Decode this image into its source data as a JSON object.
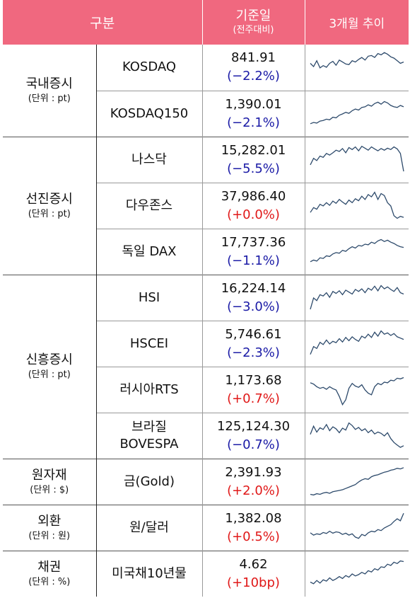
{
  "header": {
    "category": "구분",
    "base_value": "기준일",
    "base_sub": "(전주대비)",
    "trend": "3개월 추이"
  },
  "groups": {
    "domestic": {
      "name": "국내증시",
      "unit": "(단위 : pt)"
    },
    "developed": {
      "name": "선진증시",
      "unit": "(단위 : pt)"
    },
    "emerging": {
      "name": "신흥증시",
      "unit": "(단위 : pt)"
    },
    "commodity": {
      "name": "원자재",
      "unit": "(단위 : $)"
    },
    "fx": {
      "name": "외환",
      "unit": "(단위 : 원)"
    },
    "bond": {
      "name": "채권",
      "unit": "(단위 : %)"
    }
  },
  "rows": [
    {
      "name": "KOSDAQ",
      "value": "841.91",
      "change": "(−2.2%)",
      "dir": "neg",
      "trend": [
        0.62,
        0.52,
        0.7,
        0.48,
        0.55,
        0.5,
        0.62,
        0.68,
        0.56,
        0.72,
        0.66,
        0.6,
        0.58,
        0.7,
        0.66,
        0.74,
        0.8,
        0.72,
        0.84,
        0.86,
        0.8,
        0.92,
        0.88,
        0.95,
        0.9,
        0.82,
        0.78,
        0.7,
        0.62,
        0.66
      ]
    },
    {
      "name": "KOSDAQ150",
      "value": "1,390.01",
      "change": "(−2.1%)",
      "dir": "neg",
      "trend": [
        0.2,
        0.24,
        0.22,
        0.28,
        0.3,
        0.34,
        0.32,
        0.4,
        0.38,
        0.46,
        0.5,
        0.55,
        0.52,
        0.6,
        0.65,
        0.62,
        0.7,
        0.72,
        0.78,
        0.74,
        0.82,
        0.86,
        0.8,
        0.88,
        0.84,
        0.76,
        0.72,
        0.7,
        0.76,
        0.72
      ]
    },
    {
      "name": "나스닥",
      "value": "15,282.01",
      "change": "(−5.5%)",
      "dir": "neg",
      "trend": [
        0.35,
        0.55,
        0.48,
        0.62,
        0.58,
        0.7,
        0.65,
        0.72,
        0.8,
        0.76,
        0.85,
        0.72,
        0.88,
        0.82,
        0.9,
        0.78,
        0.92,
        0.86,
        0.8,
        0.9,
        0.84,
        0.78,
        0.85,
        0.8,
        0.86,
        0.82,
        0.9,
        0.84,
        0.7,
        0.15
      ]
    },
    {
      "name": "다우존스",
      "value": "37,986.40",
      "change": "(+0.0%)",
      "dir": "pos",
      "trend": [
        0.3,
        0.45,
        0.4,
        0.55,
        0.5,
        0.6,
        0.52,
        0.65,
        0.58,
        0.7,
        0.62,
        0.55,
        0.68,
        0.6,
        0.72,
        0.66,
        0.8,
        0.7,
        0.85,
        0.78,
        0.92,
        0.7,
        0.88,
        0.82,
        0.6,
        0.5,
        0.2,
        0.12,
        0.18,
        0.15
      ]
    },
    {
      "name": "독일 DAX",
      "value": "17,737.36",
      "change": "(−1.1%)",
      "dir": "neg",
      "trend": [
        0.2,
        0.25,
        0.22,
        0.32,
        0.3,
        0.38,
        0.36,
        0.44,
        0.48,
        0.46,
        0.55,
        0.52,
        0.6,
        0.66,
        0.62,
        0.7,
        0.68,
        0.74,
        0.72,
        0.8,
        0.76,
        0.84,
        0.88,
        0.82,
        0.86,
        0.8,
        0.76,
        0.7,
        0.66,
        0.64
      ]
    },
    {
      "name": "HSI",
      "value": "16,224.14",
      "change": "(−3.0%)",
      "dir": "neg",
      "trend": [
        0.15,
        0.5,
        0.42,
        0.6,
        0.56,
        0.66,
        0.52,
        0.7,
        0.64,
        0.72,
        0.6,
        0.74,
        0.68,
        0.62,
        0.76,
        0.7,
        0.78,
        0.66,
        0.8,
        0.74,
        0.86,
        0.72,
        0.88,
        0.78,
        0.84,
        0.76,
        0.7,
        0.82,
        0.66,
        0.62
      ]
    },
    {
      "name": "HSCEI",
      "value": "5,746.61",
      "change": "(−2.3%)",
      "dir": "neg",
      "trend": [
        0.18,
        0.42,
        0.36,
        0.55,
        0.48,
        0.62,
        0.5,
        0.58,
        0.54,
        0.66,
        0.56,
        0.7,
        0.6,
        0.72,
        0.64,
        0.58,
        0.74,
        0.68,
        0.8,
        0.7,
        0.86,
        0.74,
        0.9,
        0.8,
        0.84,
        0.76,
        0.82,
        0.72,
        0.68,
        0.64
      ]
    },
    {
      "name": "러시아RTS",
      "value": "1,173.68",
      "change": "(+0.7%)",
      "dir": "pos",
      "trend": [
        0.72,
        0.68,
        0.6,
        0.55,
        0.58,
        0.52,
        0.6,
        0.54,
        0.5,
        0.3,
        0.05,
        0.2,
        0.55,
        0.7,
        0.62,
        0.58,
        0.66,
        0.5,
        0.4,
        0.35,
        0.6,
        0.7,
        0.66,
        0.74,
        0.72,
        0.8,
        0.78,
        0.86,
        0.84,
        0.88
      ]
    },
    {
      "name": "브라질\nBOVESPA",
      "value": "125,124.30",
      "change": "(−0.7%)",
      "dir": "neg",
      "trend": [
        0.55,
        0.8,
        0.62,
        0.75,
        0.7,
        0.85,
        0.66,
        0.78,
        0.72,
        0.6,
        0.74,
        0.68,
        0.9,
        0.82,
        0.7,
        0.76,
        0.66,
        0.72,
        0.6,
        0.68,
        0.56,
        0.62,
        0.58,
        0.5,
        0.6,
        0.42,
        0.3,
        0.22,
        0.15,
        0.2
      ]
    },
    {
      "name": "금(Gold)",
      "value": "2,391.93",
      "change": "(+2.0%)",
      "dir": "pos",
      "trend": [
        0.12,
        0.1,
        0.14,
        0.12,
        0.16,
        0.18,
        0.15,
        0.2,
        0.22,
        0.24,
        0.26,
        0.3,
        0.34,
        0.38,
        0.42,
        0.5,
        0.56,
        0.6,
        0.58,
        0.66,
        0.7,
        0.72,
        0.76,
        0.8,
        0.82,
        0.86,
        0.88,
        0.92,
        0.9,
        0.94
      ]
    },
    {
      "name": "원/달러",
      "value": "1,382.08",
      "change": "(+0.5%)",
      "dir": "pos",
      "trend": [
        0.35,
        0.28,
        0.32,
        0.3,
        0.36,
        0.33,
        0.4,
        0.34,
        0.38,
        0.36,
        0.3,
        0.34,
        0.28,
        0.32,
        0.22,
        0.18,
        0.3,
        0.26,
        0.35,
        0.4,
        0.38,
        0.45,
        0.42,
        0.5,
        0.55,
        0.6,
        0.7,
        0.78,
        0.72,
        0.95
      ]
    },
    {
      "name": "미국채10년물",
      "value": "4.62",
      "change": "(+10bp)",
      "dir": "pos",
      "trend": [
        0.25,
        0.2,
        0.3,
        0.22,
        0.32,
        0.28,
        0.38,
        0.3,
        0.35,
        0.42,
        0.36,
        0.45,
        0.4,
        0.5,
        0.44,
        0.48,
        0.55,
        0.5,
        0.6,
        0.56,
        0.66,
        0.62,
        0.72,
        0.7,
        0.8,
        0.76,
        0.86,
        0.82,
        0.9,
        0.88
      ]
    }
  ]
}
